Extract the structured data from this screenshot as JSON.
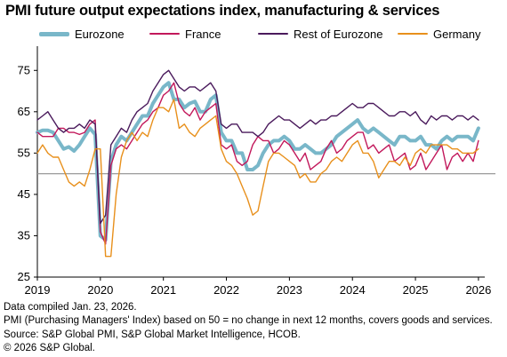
{
  "chart_data": {
    "type": "line",
    "title": "PMI future output expectations index, manufacturing & services",
    "xlabel": "",
    "ylabel": "",
    "x_ticks": [
      "2019",
      "2020",
      "2021",
      "2022",
      "2023",
      "2024",
      "2025",
      "2026"
    ],
    "y_ticks": [
      25,
      35,
      45,
      55,
      65,
      75
    ],
    "ylim": [
      25,
      80
    ],
    "xlim": [
      2019.0,
      2026.1
    ],
    "reference_line": 50,
    "legend_position": "top",
    "x": [
      2019.0,
      2019.083,
      2019.167,
      2019.25,
      2019.333,
      2019.417,
      2019.5,
      2019.583,
      2019.667,
      2019.75,
      2019.833,
      2019.917,
      2020.0,
      2020.083,
      2020.167,
      2020.25,
      2020.333,
      2020.417,
      2020.5,
      2020.583,
      2020.667,
      2020.75,
      2020.833,
      2020.917,
      2021.0,
      2021.083,
      2021.167,
      2021.25,
      2021.333,
      2021.417,
      2021.5,
      2021.583,
      2021.667,
      2021.75,
      2021.833,
      2021.917,
      2022.0,
      2022.083,
      2022.167,
      2022.25,
      2022.333,
      2022.417,
      2022.5,
      2022.583,
      2022.667,
      2022.75,
      2022.833,
      2022.917,
      2023.0,
      2023.083,
      2023.167,
      2023.25,
      2023.333,
      2023.417,
      2023.5,
      2023.583,
      2023.667,
      2023.75,
      2023.833,
      2023.917,
      2024.0,
      2024.083,
      2024.167,
      2024.25,
      2024.333,
      2024.417,
      2024.5,
      2024.583,
      2024.667,
      2024.75,
      2024.833,
      2024.917,
      2025.0,
      2025.083,
      2025.167,
      2025.25,
      2025.333,
      2025.417,
      2025.5,
      2025.583,
      2025.667,
      2025.75,
      2025.833,
      2025.917,
      2026.0
    ],
    "series": [
      {
        "name": "Eurozone",
        "color": "#79b7c9",
        "width": 4,
        "values": [
          60,
          60.5,
          60.5,
          60,
          58,
          56,
          56.5,
          55.5,
          57,
          59,
          61,
          59.5,
          35,
          34,
          53,
          57,
          59,
          58,
          60,
          62,
          64,
          64,
          67,
          69,
          71,
          72,
          68,
          68,
          66,
          67,
          67.5,
          65,
          65,
          68,
          69,
          60,
          58,
          58,
          55,
          55,
          51,
          51,
          52,
          55,
          57,
          58,
          58,
          59,
          58,
          56,
          56,
          57,
          56,
          55,
          55,
          56,
          57,
          59,
          60,
          61,
          62,
          63,
          61,
          60,
          61,
          60,
          59,
          58,
          57,
          59,
          59,
          58,
          58,
          59,
          57,
          57,
          56,
          58,
          59,
          58,
          59,
          59,
          59,
          58,
          61
        ]
      },
      {
        "name": "France",
        "color": "#c2185b",
        "width": 1.4,
        "values": [
          60,
          59,
          59,
          59,
          61,
          61,
          60,
          60,
          59.5,
          60,
          62,
          63,
          36,
          33,
          52,
          56,
          57,
          56,
          58,
          60,
          62,
          63,
          65,
          66,
          69,
          70,
          72,
          67,
          65,
          64,
          66,
          63,
          65,
          66,
          67,
          57,
          56,
          57,
          53,
          52,
          53,
          57,
          59,
          58,
          58,
          55,
          56,
          58,
          57,
          55,
          53,
          55,
          51,
          52,
          53,
          56,
          58,
          55,
          56,
          58,
          59,
          60,
          60,
          56,
          57,
          55,
          56,
          57,
          53,
          54,
          55,
          51,
          52,
          55,
          51,
          53,
          55,
          57,
          51,
          54,
          55,
          53,
          55,
          53,
          58
        ]
      },
      {
        "name": "Rest of Eurozone",
        "color": "#4a1a5c",
        "width": 1.4,
        "values": [
          63,
          64,
          65,
          63,
          61,
          60,
          61,
          61,
          62,
          61,
          63,
          62,
          38,
          40,
          57,
          59,
          61,
          60,
          63,
          65,
          66,
          67,
          70,
          72,
          74,
          75,
          73,
          71,
          70,
          71,
          71,
          70,
          71,
          72,
          70,
          62,
          61,
          62,
          62,
          60,
          60,
          60,
          59,
          60,
          62,
          63,
          64,
          63,
          63,
          62,
          61,
          62,
          63,
          62,
          63,
          63,
          64,
          64,
          65,
          66,
          67,
          66,
          66,
          67,
          67,
          66,
          65,
          64,
          64,
          65,
          65,
          64,
          65,
          63,
          62,
          64,
          63,
          64,
          64,
          63,
          64,
          64,
          63,
          64,
          63
        ]
      },
      {
        "name": "Germany",
        "color": "#e8901c",
        "width": 1.4,
        "values": [
          55,
          57,
          55,
          54,
          54,
          51,
          48,
          47,
          48,
          47,
          51,
          56,
          56,
          30,
          30,
          45,
          54,
          58,
          60,
          58,
          60,
          59,
          63,
          66,
          66,
          65,
          68,
          61,
          62,
          60,
          59,
          61,
          62,
          63,
          64,
          56,
          53,
          52,
          50,
          47,
          44,
          40,
          41,
          47,
          53,
          55,
          55,
          54,
          53,
          52,
          49,
          50,
          48,
          48,
          50,
          51,
          53,
          54,
          53,
          55,
          57,
          58,
          55,
          55,
          53,
          49,
          51,
          53,
          53,
          52,
          54,
          52,
          55,
          56,
          55,
          57,
          57,
          57,
          57,
          56,
          56,
          55,
          55,
          55,
          56
        ]
      }
    ]
  },
  "footer": {
    "line1": "Data compiled Jan. 23, 2026.",
    "line2": "PMI (Purchasing Managers' Index) based on 50 = no change in next 12 months, covers goods and services.",
    "line3": "Source: S&P Global PMI, S&P Global Market Intelligence, HCOB.",
    "line4": "© 2026 S&P Global."
  }
}
